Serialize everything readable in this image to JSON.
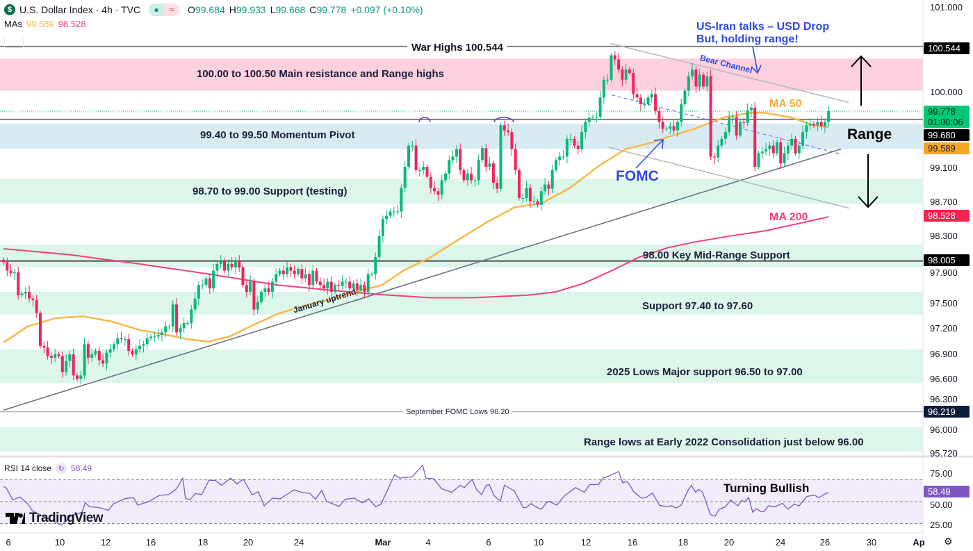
{
  "header": {
    "logo_glyph": "$",
    "title": "U.S. Dollar Index · 4h · TVC",
    "ohlc": {
      "o_label": "O",
      "o": "99.684",
      "h_label": "H",
      "h": "99.933",
      "l_label": "L",
      "l": "99.668",
      "c_label": "C",
      "c": "99.778",
      "change": "+0.097 (+0.10%)"
    },
    "mas_label": "MAs",
    "ma50_value": "99.589",
    "ma200_value": "98.528"
  },
  "rsi_header": {
    "label": "RSI 14 close",
    "value": "58.49"
  },
  "brand": "TradingView",
  "colors": {
    "up": "#08b97a",
    "down": "#f0245a",
    "ma50": "#f7b84b",
    "ma200": "#f2407a",
    "rsi": "#7e57c2",
    "resistance_zone": "#fccbd9",
    "pivot_zone": "#d4e9f2",
    "support_zone": "#d8f5e8",
    "annotation_blue": "#2f4ae0"
  },
  "annotations": {
    "war_highs": "War Highs 100.544",
    "resistance": "100.00 to 100.50 Main resistance and Range highs",
    "pivot": "99.40 to 99.50 Momentum Pivot",
    "support_testing": "98.70 to 99.00 Support (testing)",
    "mid_range": "98.00 Key Mid-Range Support",
    "support_974": "Support 97.40 to 97.60",
    "lows_2025": "2025 Lows Major support 96.50 to 97.00",
    "sept_fomc": "September FOMC Lows 96.20",
    "range_lows": "Range lows at Early 2022 Consolidation just below 96.00",
    "january_uptrend": "January uptrend",
    "bear_channel": "Bear Channel",
    "us_iran_1": "US-Iran talks – USD Drop",
    "us_iran_2": "But, holding range!",
    "ma50": "MA 50",
    "ma200": "MA 200",
    "fomc": "FOMC",
    "range": "Range",
    "turning_bullish": "Turning Bullish"
  },
  "price_axis": {
    "ticks": [
      "101.000",
      "100.000",
      "99.100",
      "98.700",
      "98.300",
      "97.900",
      "97.500",
      "97.200",
      "96.900",
      "96.600",
      "96.300",
      "96.000",
      "95.720"
    ],
    "tags": {
      "war_high": "100.544",
      "last": "99.778",
      "countdown": "01:00:06",
      "pivot": "99.680",
      "ma50": "99.589",
      "ma200": "98.528",
      "mid": "98.005",
      "sept": "96.219"
    }
  },
  "rsi_axis": {
    "ticks": [
      "75.00",
      "50.00",
      "25.00"
    ],
    "tag": "58.49"
  },
  "time_axis": [
    "6",
    "10",
    "12",
    "16",
    "18",
    "20",
    "24",
    "Mar",
    "4",
    "6",
    "10",
    "12",
    "16",
    "18",
    "20",
    "24",
    "26",
    "30",
    "Ap"
  ],
  "chart_data": [
    {
      "type": "candlestick",
      "title": "U.S. Dollar Index · 4h · TVC",
      "ylim": [
        95.72,
        101.0
      ],
      "first_open": 98.02,
      "closes": [
        97.99,
        97.89,
        97.86,
        97.87,
        97.6,
        97.62,
        97.64,
        97.56,
        97.54,
        97.39,
        97.0,
        96.98,
        96.88,
        96.86,
        96.9,
        96.88,
        96.69,
        96.82,
        96.9,
        96.65,
        96.61,
        96.65,
        97.02,
        96.86,
        96.9,
        96.94,
        96.83,
        96.79,
        96.92,
        96.96,
        97.02,
        97.09,
        97.08,
        97.08,
        96.94,
        96.9,
        96.96,
        97.0,
        97.02,
        97.09,
        97.11,
        97.11,
        97.13,
        97.16,
        97.23,
        97.23,
        97.49,
        97.16,
        97.21,
        97.27,
        97.27,
        97.43,
        97.56,
        97.72,
        97.72,
        97.8,
        97.68,
        97.89,
        97.97,
        98.01,
        97.89,
        97.97,
        97.93,
        98.01,
        97.93,
        97.72,
        97.64,
        97.76,
        97.43,
        97.52,
        97.64,
        97.68,
        97.64,
        97.76,
        97.85,
        97.89,
        97.85,
        97.93,
        97.89,
        97.85,
        97.91,
        97.8,
        97.85,
        97.72,
        97.89,
        97.76,
        97.72,
        97.68,
        97.76,
        97.64,
        97.72,
        97.71,
        97.76,
        97.76,
        97.68,
        97.74,
        97.66,
        97.72,
        97.64,
        97.85,
        97.85,
        98.05,
        98.3,
        98.5,
        98.54,
        98.59,
        98.59,
        98.59,
        98.87,
        99.12,
        99.37,
        99.37,
        99.08,
        99.08,
        99.12,
        99.0,
        98.87,
        98.83,
        98.79,
        98.96,
        99.04,
        99.2,
        99.24,
        99.33,
        99.08,
        98.96,
        99.04,
        98.96,
        98.96,
        99.2,
        99.34,
        99.12,
        99.16,
        98.93,
        98.86,
        99.61,
        99.55,
        99.53,
        99.33,
        99.08,
        98.75,
        98.75,
        98.87,
        98.71,
        98.71,
        98.67,
        98.83,
        98.91,
        98.86,
        99.08,
        99.2,
        99.24,
        99.24,
        99.45,
        99.45,
        99.37,
        99.33,
        99.53,
        99.65,
        99.7,
        99.71,
        99.71,
        99.94,
        100.15,
        100.15,
        100.44,
        100.39,
        100.27,
        100.15,
        100.27,
        100.23,
        99.98,
        99.94,
        99.86,
        99.86,
        99.94,
        99.98,
        99.78,
        99.65,
        99.57,
        99.57,
        99.6,
        99.55,
        99.65,
        99.86,
        100.02,
        100.19,
        100.27,
        100.07,
        100.21,
        100.07,
        100.19,
        99.24,
        99.23,
        99.37,
        99.45,
        99.53,
        99.7,
        99.71,
        99.49,
        99.65,
        99.64,
        99.79,
        99.82,
        99.12,
        99.28,
        99.3,
        99.33,
        99.37,
        99.28,
        99.41,
        99.16,
        99.28,
        99.37,
        99.45,
        99.28,
        99.37,
        99.53,
        99.61,
        99.63,
        99.61,
        99.65,
        99.6,
        99.65,
        99.778
      ],
      "ma50": [
        [
          0,
          97.04
        ],
        [
          6.6,
          97.23
        ],
        [
          14.2,
          97.33
        ],
        [
          21.7,
          97.35
        ],
        [
          29.2,
          97.29
        ],
        [
          36.8,
          97.19
        ],
        [
          44.3,
          97.13
        ],
        [
          50,
          97.08
        ],
        [
          55.7,
          97.05
        ],
        [
          61.3,
          97.11
        ],
        [
          67,
          97.23
        ],
        [
          74.5,
          97.38
        ],
        [
          82.1,
          97.48
        ],
        [
          89.6,
          97.56
        ],
        [
          97.2,
          97.66
        ],
        [
          102.8,
          97.72
        ],
        [
          108.5,
          97.89
        ],
        [
          116,
          98.05
        ],
        [
          123.6,
          98.26
        ],
        [
          131.1,
          98.46
        ],
        [
          138.7,
          98.64
        ],
        [
          146.2,
          98.69
        ],
        [
          153.8,
          98.87
        ],
        [
          161.3,
          99.12
        ],
        [
          168.9,
          99.33
        ],
        [
          176.4,
          99.41
        ],
        [
          180.2,
          99.47
        ],
        [
          187.7,
          99.57
        ],
        [
          195.3,
          99.7
        ],
        [
          202.8,
          99.76
        ],
        [
          206.6,
          99.76
        ],
        [
          214.2,
          99.7
        ],
        [
          219.8,
          99.61
        ],
        [
          224,
          99.589
        ]
      ],
      "ma200": [
        [
          0,
          98.15
        ],
        [
          17.9,
          98.08
        ],
        [
          36.8,
          97.97
        ],
        [
          55.7,
          97.85
        ],
        [
          74.5,
          97.72
        ],
        [
          93.4,
          97.64
        ],
        [
          104.7,
          97.6
        ],
        [
          116,
          97.57
        ],
        [
          127.4,
          97.57
        ],
        [
          142.5,
          97.6
        ],
        [
          150,
          97.64
        ],
        [
          157.5,
          97.74
        ],
        [
          165.1,
          97.89
        ],
        [
          172.6,
          98.05
        ],
        [
          180.2,
          98.16
        ],
        [
          187.7,
          98.23
        ],
        [
          197.2,
          98.3
        ],
        [
          206.6,
          98.36
        ],
        [
          216,
          98.45
        ],
        [
          224,
          98.528
        ]
      ],
      "zones": [
        {
          "kind": "resistance",
          "from": 100.02,
          "to": 100.4
        },
        {
          "kind": "pivot",
          "from": 99.33,
          "to": 99.63
        },
        {
          "kind": "support",
          "from": 98.68,
          "to": 98.98
        },
        {
          "kind": "support",
          "from": 97.93,
          "to": 98.2
        },
        {
          "kind": "support",
          "from": 97.37,
          "to": 97.64
        },
        {
          "kind": "support",
          "from": 96.56,
          "to": 96.96
        },
        {
          "kind": "support",
          "from": 95.75,
          "to": 96.04
        }
      ],
      "levels": {
        "war_high": 100.544,
        "pivot_line": 99.68,
        "mid": 98.005,
        "sept_fomc": 96.219,
        "last": 99.778
      },
      "trendlines": {
        "january_uptrend": [
          [
            0,
            96.24
          ],
          [
            227.4,
            99.33
          ]
        ],
        "bear_channel_upper": [
          [
            164.7,
            100.58
          ],
          [
            229.6,
            99.88
          ]
        ],
        "bear_channel_lower": [
          [
            164.3,
            99.35
          ],
          [
            229.6,
            98.63
          ]
        ],
        "bear_channel_mid": [
          [
            165.1,
            99.97
          ],
          [
            227.4,
            99.27
          ]
        ]
      }
    },
    {
      "type": "line",
      "title": "RSI 14 close",
      "ylim": [
        20,
        85
      ],
      "bands": [
        30,
        50,
        70
      ],
      "points": [
        [
          0,
          64
        ],
        [
          0.8,
          62.3
        ],
        [
          2.5,
          51.7
        ],
        [
          4.5,
          54.3
        ],
        [
          6.6,
          47.9
        ],
        [
          7.9,
          41.4
        ],
        [
          11.7,
          35
        ],
        [
          15.8,
          28.5
        ],
        [
          18.3,
          37
        ],
        [
          21.3,
          40.3
        ],
        [
          22.2,
          48.9
        ],
        [
          23.4,
          45.3
        ],
        [
          26,
          44.6
        ],
        [
          28.5,
          42
        ],
        [
          29.8,
          47.9
        ],
        [
          33,
          52.8
        ],
        [
          35.3,
          53.7
        ],
        [
          36.4,
          46.8
        ],
        [
          39.4,
          50
        ],
        [
          42.3,
          55.8
        ],
        [
          44.9,
          56.5
        ],
        [
          47,
          61.8
        ],
        [
          48.7,
          71.5
        ],
        [
          49.4,
          53.2
        ],
        [
          50.6,
          51.7
        ],
        [
          52.1,
          57.5
        ],
        [
          53.8,
          56.5
        ],
        [
          55.8,
          69.4
        ],
        [
          57.5,
          69.4
        ],
        [
          59.2,
          65
        ],
        [
          61.7,
          71.5
        ],
        [
          63.4,
          66.1
        ],
        [
          65.1,
          70.6
        ],
        [
          67.5,
          56.5
        ],
        [
          69.2,
          59
        ],
        [
          70.8,
          46.1
        ],
        [
          73,
          53.2
        ],
        [
          75.1,
          52.6
        ],
        [
          76.4,
          55.4
        ],
        [
          78.9,
          60.8
        ],
        [
          80.9,
          58.6
        ],
        [
          83.2,
          57.5
        ],
        [
          84.7,
          52.2
        ],
        [
          86.4,
          60.3
        ],
        [
          87.7,
          50.4
        ],
        [
          91.1,
          45.7
        ],
        [
          92.8,
          52.2
        ],
        [
          95.3,
          53.2
        ],
        [
          97.4,
          48.9
        ],
        [
          99.1,
          52.6
        ],
        [
          101.1,
          45.3
        ],
        [
          102.5,
          47.9
        ],
        [
          106.2,
          74.7
        ],
        [
          107.5,
          71.5
        ],
        [
          110.9,
          72.6
        ],
        [
          113.8,
          83.3
        ],
        [
          114.7,
          71.5
        ],
        [
          116.8,
          71
        ],
        [
          118.9,
          61.8
        ],
        [
          121.7,
          58.6
        ],
        [
          124,
          65
        ],
        [
          125.1,
          62.9
        ],
        [
          127.2,
          70.4
        ],
        [
          128.5,
          60.8
        ],
        [
          129.8,
          56.5
        ],
        [
          131.1,
          65.1
        ],
        [
          131.9,
          65.5
        ],
        [
          133.2,
          55.4
        ],
        [
          134.9,
          50.6
        ],
        [
          136,
          65.1
        ],
        [
          138.7,
          59.7
        ],
        [
          141.1,
          44.6
        ],
        [
          141.9,
          44.6
        ],
        [
          143.2,
          48.3
        ],
        [
          144.5,
          45.3
        ],
        [
          146,
          43.1
        ],
        [
          147.4,
          48.9
        ],
        [
          148.1,
          50.4
        ],
        [
          150.2,
          46.8
        ],
        [
          152.3,
          55.4
        ],
        [
          153.6,
          58.6
        ],
        [
          155.3,
          62.9
        ],
        [
          157.7,
          58.6
        ],
        [
          159.1,
          65.5
        ],
        [
          161.5,
          65.7
        ],
        [
          162.8,
          71.5
        ],
        [
          164,
          73
        ],
        [
          167,
          77.5
        ],
        [
          168.1,
          67.2
        ],
        [
          169.1,
          68.3
        ],
        [
          169.8,
          66.6
        ],
        [
          171.1,
          59
        ],
        [
          173.2,
          53.2
        ],
        [
          174.3,
          53.6
        ],
        [
          176.2,
          57.9
        ],
        [
          178.1,
          46.6
        ],
        [
          180.2,
          45.5
        ],
        [
          181.5,
          46.3
        ],
        [
          182.6,
          44.1
        ],
        [
          184,
          46.9
        ],
        [
          186,
          61.4
        ],
        [
          186.8,
          64.6
        ],
        [
          187.9,
          58.6
        ],
        [
          188.7,
          61.2
        ],
        [
          189.8,
          58.6
        ],
        [
          191.9,
          38.2
        ],
        [
          193.2,
          36.7
        ],
        [
          194.3,
          43.1
        ],
        [
          196,
          45.3
        ],
        [
          197.4,
          51.5
        ],
        [
          199.4,
          46.1
        ],
        [
          200.4,
          51.1
        ],
        [
          201.3,
          50
        ],
        [
          202.3,
          53.7
        ],
        [
          203.4,
          40.3
        ],
        [
          204.3,
          43.6
        ],
        [
          205.7,
          40.8
        ],
        [
          206.4,
          40.8
        ],
        [
          207.7,
          46.3
        ],
        [
          209.4,
          45.3
        ],
        [
          211.5,
          48.5
        ],
        [
          213,
          43.1
        ],
        [
          214.7,
          47.9
        ],
        [
          216,
          46.1
        ],
        [
          218.1,
          54.7
        ],
        [
          220.2,
          56
        ],
        [
          221.3,
          53.6
        ],
        [
          223,
          57
        ],
        [
          224,
          58.49
        ]
      ]
    }
  ]
}
